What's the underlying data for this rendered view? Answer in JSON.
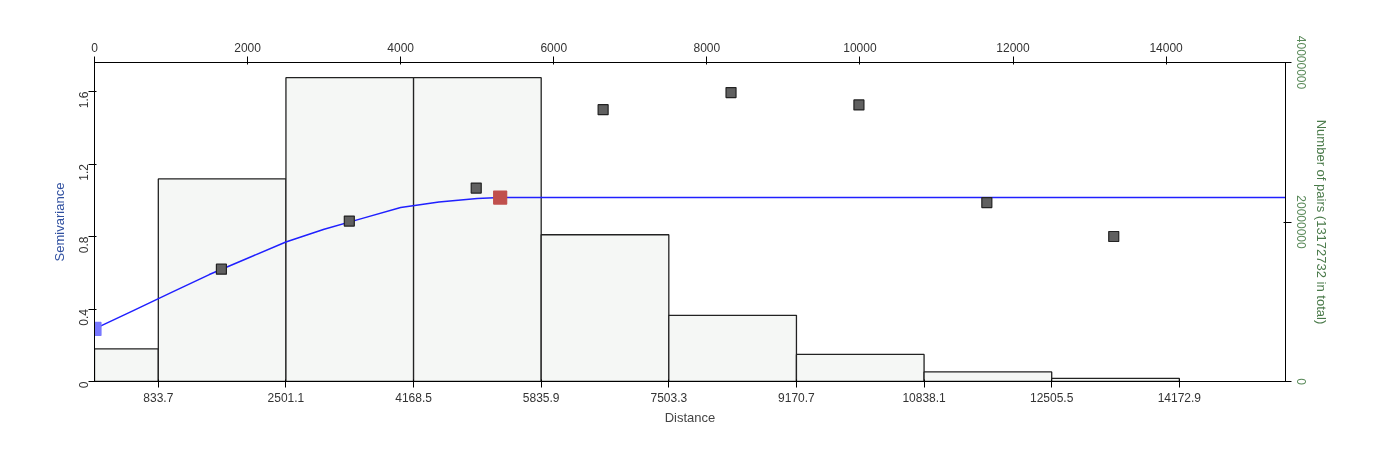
{
  "chart_data": {
    "type": "scatter",
    "xlabel": "Distance",
    "ylabel": "Semivariance",
    "y2label": "Number of pairs (13172732 in total)",
    "xlim": [
      0,
      15560
    ],
    "xticks": [
      833.7,
      2501.1,
      4168.5,
      5835.9,
      7503.3,
      9170.7,
      10838.1,
      12505.5,
      14172.9
    ],
    "x2lim": [
      0,
      15560
    ],
    "x2ticks": [
      0,
      2000,
      4000,
      6000,
      8000,
      10000,
      12000,
      14000
    ],
    "ylim": [
      0,
      1.76
    ],
    "yticks": [
      0,
      0.4,
      0.8,
      1.2,
      1.6
    ],
    "y2lim": [
      0,
      40000000
    ],
    "y2ticks": [
      0,
      20000000,
      40000000
    ],
    "grid": false,
    "marker": "square",
    "series": [
      {
        "type": "histogram",
        "axis": "y2",
        "color": "#f5f7f5",
        "bins": [
          0,
          833.7,
          2501.1,
          4168.5,
          5835.9,
          7503.3,
          9170.7,
          10838.1,
          12505.5,
          14172.9
        ],
        "values": [
          4100000,
          25400000,
          38100000,
          38100000,
          18400000,
          8300000,
          3400000,
          1200000,
          400000
        ]
      },
      {
        "type": "line",
        "color": "#2020ff",
        "line_style": "solid",
        "marker": "none",
        "x": [
          0,
          500,
          1000,
          1500,
          2000,
          2500,
          3000,
          3500,
          4000,
          4500,
          5000,
          5300,
          15560
        ],
        "values": [
          0.29,
          0.39,
          0.49,
          0.59,
          0.68,
          0.77,
          0.84,
          0.9,
          0.96,
          0.99,
          1.01,
          1.015,
          1.015
        ]
      },
      {
        "color": "#606060",
        "x": [
          1658,
          3329,
          4987,
          6645,
          8316,
          9987,
          11658,
          13316
        ],
        "values": [
          0.62,
          0.885,
          1.067,
          1.5,
          1.594,
          1.526,
          0.987,
          0.8
        ]
      },
      {
        "type": "scatter",
        "color": "#7878ff",
        "x": [
          0
        ],
        "values": [
          0.29
        ]
      },
      {
        "type": "scatter",
        "color": "#c0504d",
        "x": [
          5300
        ],
        "values": [
          1.015
        ]
      }
    ]
  }
}
